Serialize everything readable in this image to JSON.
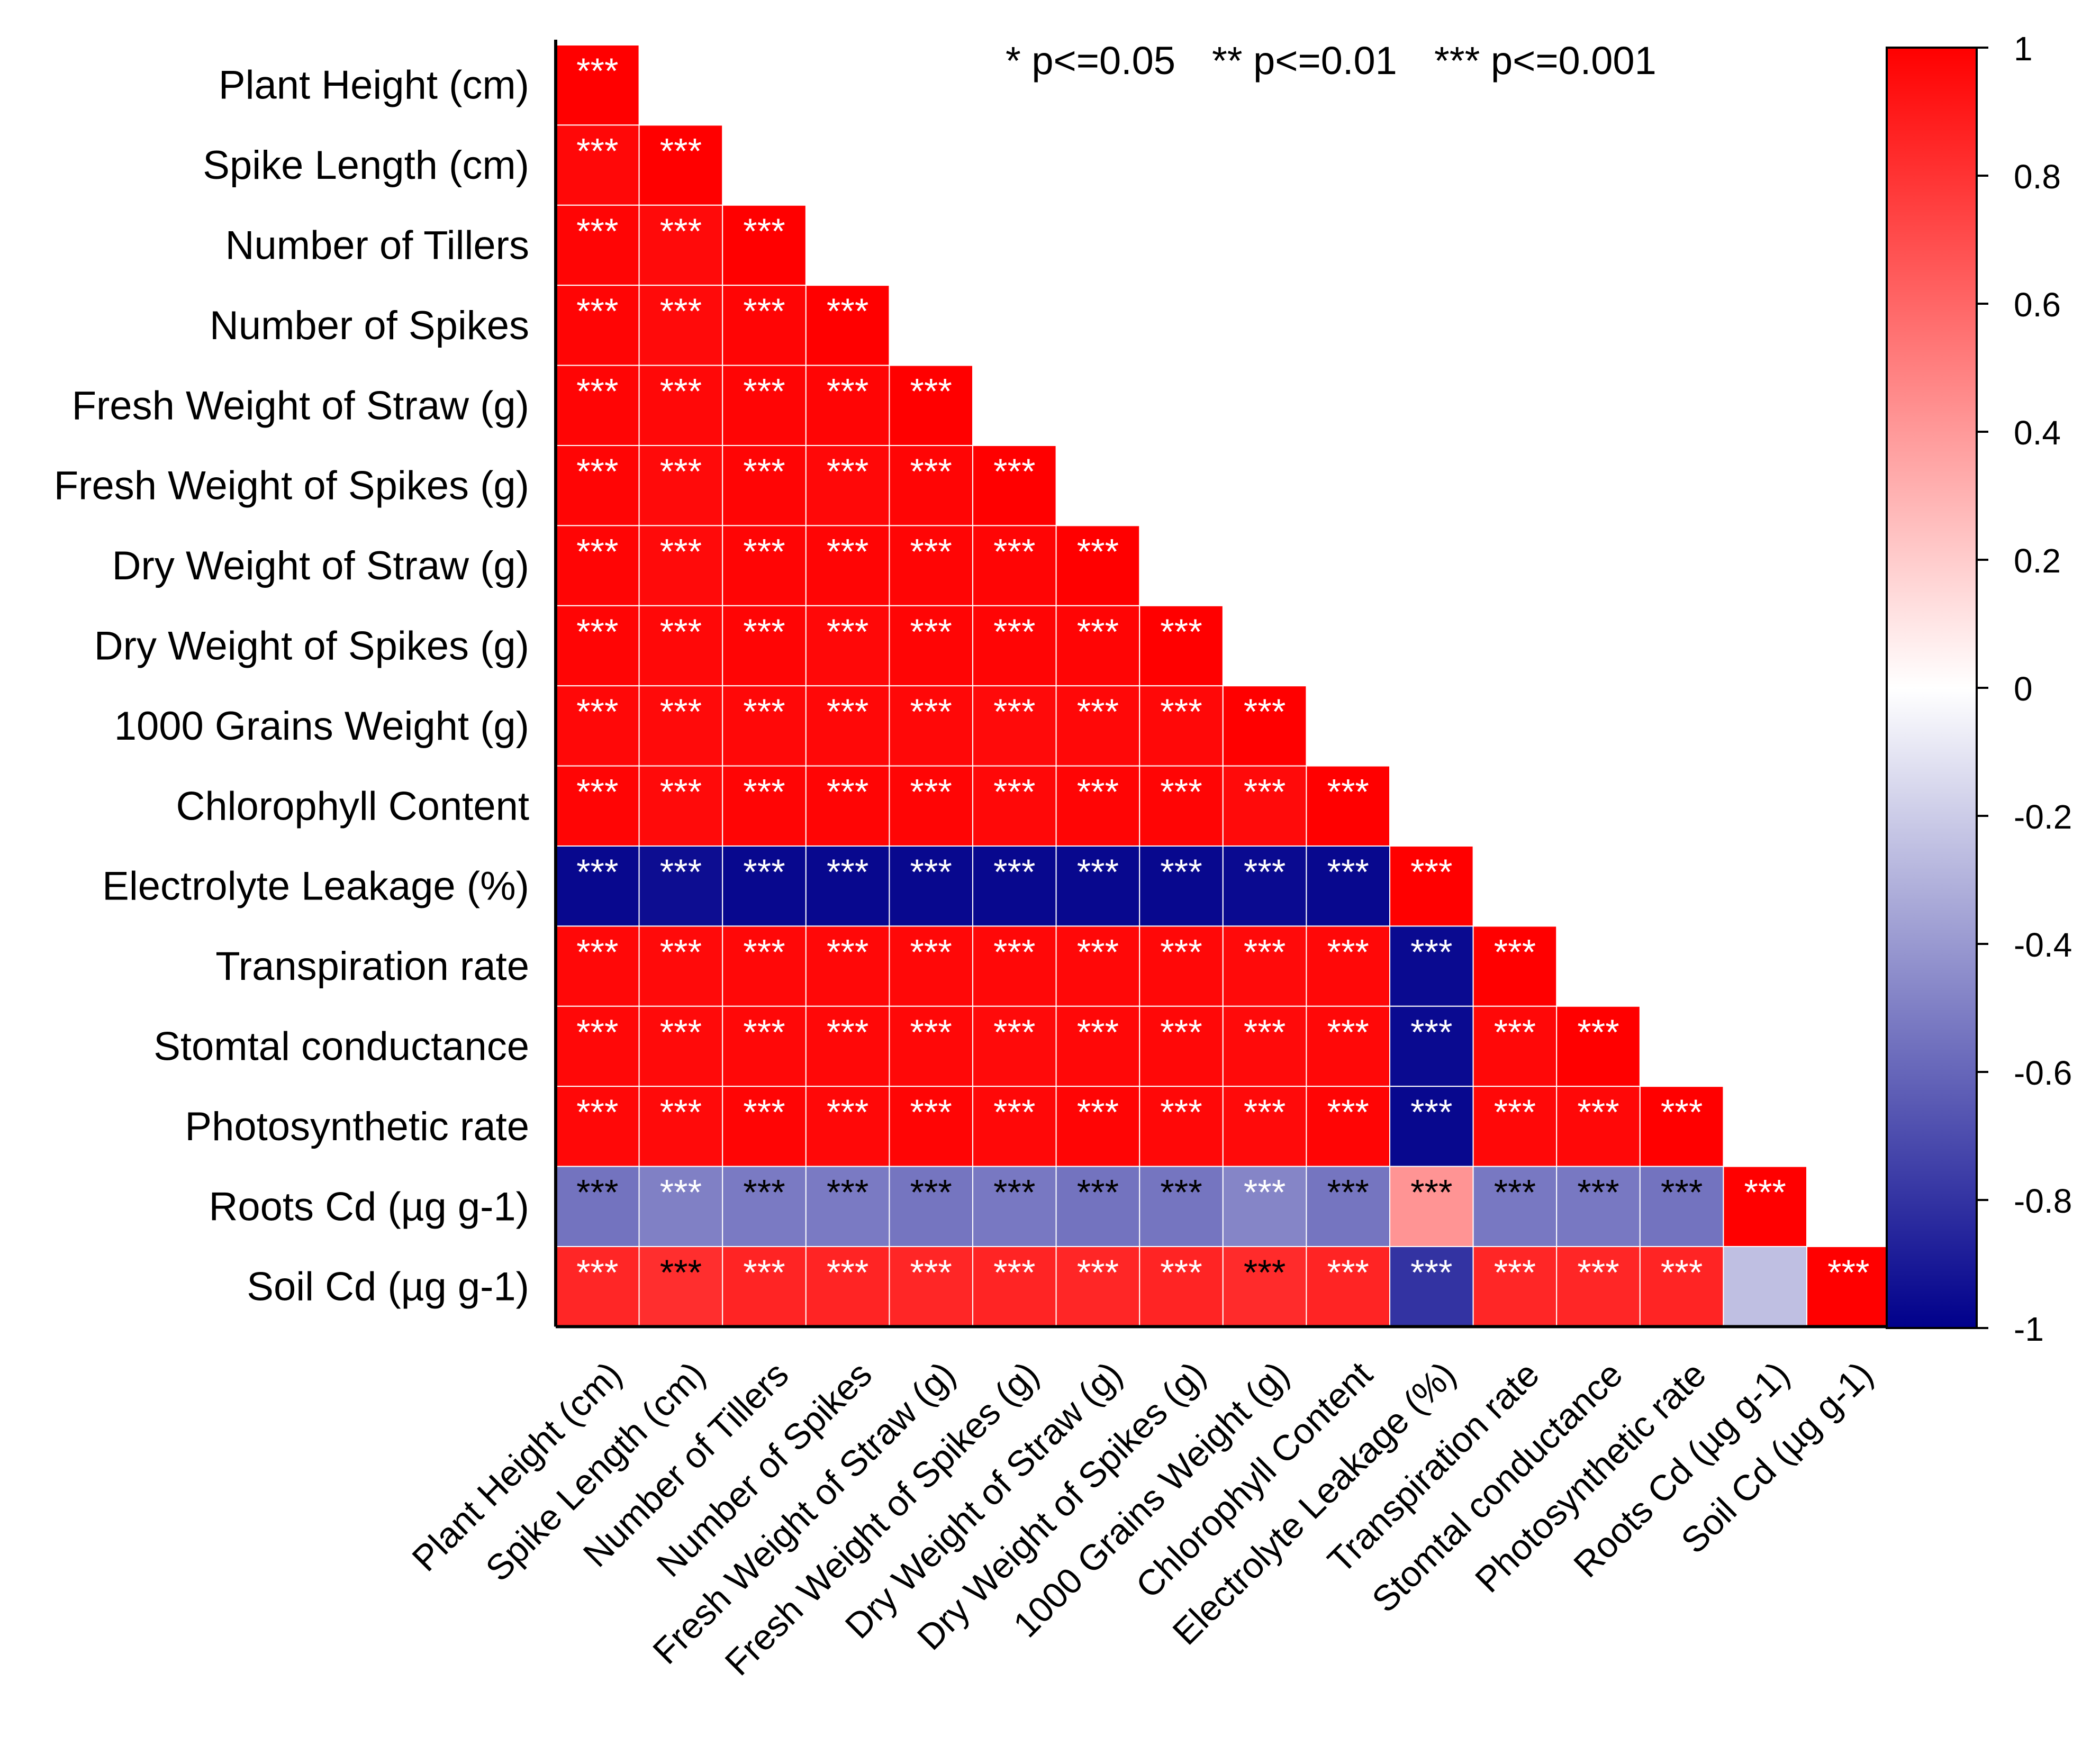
{
  "chart_data": {
    "type": "heatmap",
    "title": "",
    "subtitle": "",
    "legend_text": {
      "p1": "* p<=0.05",
      "p2": "** p<=0.01",
      "p3": "*** p<=0.001"
    },
    "variables": [
      "Plant Height (cm)",
      "Spike Length (cm)",
      "Number of Tillers",
      "Number of Spikes",
      "Fresh Weight of Straw (g)",
      "Fresh Weight of Spikes (g)",
      "Dry Weight of Straw (g)",
      "Dry Weight of Spikes (g)",
      "1000 Grains Weight (g)",
      "Chlorophyll Content",
      "Electrolyte Leakage (%)",
      "Transpiration rate",
      "Stomtal conductance",
      "Photosynthetic rate",
      "Roots Cd (µg g-1)",
      "Soil Cd (µg g-1)"
    ],
    "correlations": [
      [
        1.0
      ],
      [
        0.97,
        1.0
      ],
      [
        0.98,
        0.96,
        1.0
      ],
      [
        0.98,
        0.96,
        0.98,
        1.0
      ],
      [
        0.98,
        0.97,
        0.98,
        0.98,
        1.0
      ],
      [
        0.98,
        0.96,
        0.98,
        0.97,
        0.98,
        1.0
      ],
      [
        0.98,
        0.96,
        0.98,
        0.98,
        0.98,
        0.98,
        1.0
      ],
      [
        0.98,
        0.97,
        0.98,
        0.97,
        0.98,
        0.98,
        0.98,
        1.0
      ],
      [
        0.97,
        0.96,
        0.97,
        0.97,
        0.97,
        0.96,
        0.97,
        0.97,
        1.0
      ],
      [
        0.98,
        0.96,
        0.98,
        0.98,
        0.98,
        0.97,
        0.98,
        0.98,
        0.96,
        1.0
      ],
      [
        -0.97,
        -0.95,
        -0.97,
        -0.97,
        -0.97,
        -0.97,
        -0.97,
        -0.97,
        -0.96,
        -0.97,
        1.0
      ],
      [
        0.97,
        0.96,
        0.97,
        0.97,
        0.97,
        0.97,
        0.97,
        0.97,
        0.96,
        0.97,
        -0.96,
        1.0
      ],
      [
        0.97,
        0.96,
        0.97,
        0.97,
        0.97,
        0.96,
        0.97,
        0.97,
        0.96,
        0.97,
        -0.96,
        0.97,
        1.0
      ],
      [
        0.97,
        0.96,
        0.98,
        0.97,
        0.98,
        0.97,
        0.98,
        0.97,
        0.96,
        0.98,
        -0.97,
        0.97,
        0.97,
        1.0
      ],
      [
        -0.55,
        -0.5,
        -0.52,
        -0.52,
        -0.54,
        -0.53,
        -0.55,
        -0.54,
        -0.48,
        -0.54,
        0.42,
        -0.53,
        -0.53,
        -0.55,
        1.0
      ],
      [
        0.85,
        0.82,
        0.86,
        0.86,
        0.85,
        0.86,
        0.85,
        0.86,
        0.83,
        0.86,
        -0.8,
        0.85,
        0.85,
        0.86,
        -0.25,
        1.0
      ]
    ],
    "significance": [
      [
        "***"
      ],
      [
        "***",
        "***"
      ],
      [
        "***",
        "***",
        "***"
      ],
      [
        "***",
        "***",
        "***",
        "***"
      ],
      [
        "***",
        "***",
        "***",
        "***",
        "***"
      ],
      [
        "***",
        "***",
        "***",
        "***",
        "***",
        "***"
      ],
      [
        "***",
        "***",
        "***",
        "***",
        "***",
        "***",
        "***"
      ],
      [
        "***",
        "***",
        "***",
        "***",
        "***",
        "***",
        "***",
        "***"
      ],
      [
        "***",
        "***",
        "***",
        "***",
        "***",
        "***",
        "***",
        "***",
        "***"
      ],
      [
        "***",
        "***",
        "***",
        "***",
        "***",
        "***",
        "***",
        "***",
        "***",
        "***"
      ],
      [
        "***",
        "***",
        "***",
        "***",
        "***",
        "***",
        "***",
        "***",
        "***",
        "***",
        "***"
      ],
      [
        "***",
        "***",
        "***",
        "***",
        "***",
        "***",
        "***",
        "***",
        "***",
        "***",
        "***",
        "***"
      ],
      [
        "***",
        "***",
        "***",
        "***",
        "***",
        "***",
        "***",
        "***",
        "***",
        "***",
        "***",
        "***",
        "***"
      ],
      [
        "***",
        "***",
        "***",
        "***",
        "***",
        "***",
        "***",
        "***",
        "***",
        "***",
        "***",
        "***",
        "***",
        "***"
      ],
      [
        "***",
        "***",
        "***",
        "***",
        "***",
        "***",
        "***",
        "***",
        "***",
        "***",
        "***",
        "***",
        "***",
        "***",
        "***"
      ],
      [
        "***",
        "***",
        "***",
        "***",
        "***",
        "***",
        "***",
        "***",
        "***",
        "***",
        "***",
        "***",
        "***",
        "***",
        "",
        "***"
      ]
    ],
    "star_colors": [
      [
        "white"
      ],
      [
        "white",
        "white"
      ],
      [
        "white",
        "white",
        "white"
      ],
      [
        "white",
        "white",
        "white",
        "white"
      ],
      [
        "white",
        "white",
        "white",
        "white",
        "white"
      ],
      [
        "white",
        "white",
        "white",
        "white",
        "white",
        "white"
      ],
      [
        "white",
        "white",
        "white",
        "white",
        "white",
        "white",
        "white"
      ],
      [
        "white",
        "white",
        "white",
        "white",
        "white",
        "white",
        "white",
        "white"
      ],
      [
        "white",
        "white",
        "white",
        "white",
        "white",
        "white",
        "white",
        "white",
        "white"
      ],
      [
        "white",
        "white",
        "white",
        "white",
        "white",
        "white",
        "white",
        "white",
        "white",
        "white"
      ],
      [
        "white",
        "white",
        "white",
        "white",
        "white",
        "white",
        "white",
        "white",
        "white",
        "white",
        "white"
      ],
      [
        "white",
        "white",
        "white",
        "white",
        "white",
        "white",
        "white",
        "white",
        "white",
        "white",
        "white",
        "white"
      ],
      [
        "white",
        "white",
        "white",
        "white",
        "white",
        "white",
        "white",
        "white",
        "white",
        "white",
        "white",
        "white",
        "white"
      ],
      [
        "white",
        "white",
        "white",
        "white",
        "white",
        "white",
        "white",
        "white",
        "white",
        "white",
        "white",
        "white",
        "white",
        "white"
      ],
      [
        "black",
        "white",
        "black",
        "black",
        "black",
        "black",
        "black",
        "black",
        "white",
        "black",
        "black",
        "black",
        "black",
        "black",
        "white"
      ],
      [
        "white",
        "black",
        "white",
        "white",
        "white",
        "white",
        "white",
        "white",
        "black",
        "white",
        "white",
        "white",
        "white",
        "white",
        "",
        "white"
      ]
    ],
    "colorbar": {
      "min": -1,
      "max": 1,
      "ticks": [
        1,
        0.8,
        0.6,
        0.4,
        0.2,
        0,
        -0.2,
        -0.4,
        -0.6,
        -0.8,
        -1
      ],
      "tick_labels": [
        "1",
        "0.8",
        "0.6",
        "0.4",
        "0.2",
        "0",
        "-0.2",
        "-0.4",
        "-0.6",
        "-0.8",
        "-1"
      ],
      "color_min": "#00008b",
      "color_mid": "#ffffff",
      "color_max": "#ff0000"
    },
    "xlabel": "",
    "ylabel": "",
    "grid": false
  }
}
